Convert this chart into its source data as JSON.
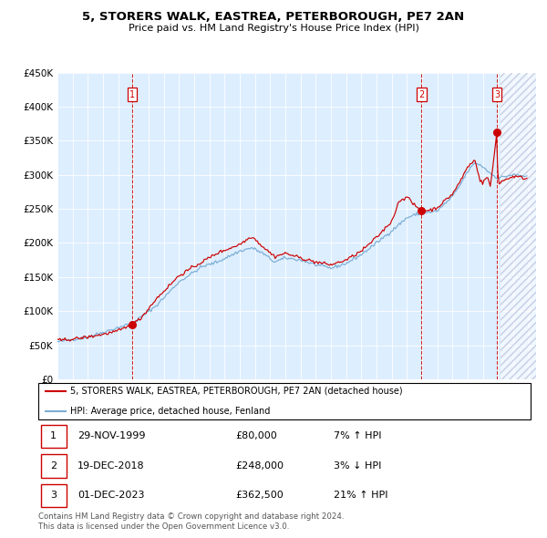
{
  "title": "5, STORERS WALK, EASTREA, PETERBOROUGH, PE7 2AN",
  "subtitle": "Price paid vs. HM Land Registry's House Price Index (HPI)",
  "ylim": [
    0,
    450000
  ],
  "xlim_start": 1995.0,
  "xlim_end": 2026.5,
  "sale_color": "#cc0000",
  "hpi_color": "#7aadd4",
  "background_color": "#ddeeff",
  "hatch_start": 2024.17,
  "annotations": [
    {
      "num": 1,
      "date": "29-NOV-1999",
      "price": 80000,
      "pct": "7%",
      "dir": "↑",
      "x": 1999.92
    },
    {
      "num": 2,
      "date": "19-DEC-2018",
      "price": 248000,
      "pct": "3%",
      "dir": "↓",
      "x": 2018.97
    },
    {
      "num": 3,
      "date": "01-DEC-2023",
      "price": 362500,
      "pct": "21%",
      "dir": "↑",
      "x": 2023.92
    }
  ],
  "legend_label_sale": "5, STORERS WALK, EASTREA, PETERBOROUGH, PE7 2AN (detached house)",
  "legend_label_hpi": "HPI: Average price, detached house, Fenland",
  "table_rows": [
    {
      "num": "1",
      "date": "29-NOV-1999",
      "price": "£80,000",
      "pct": "7% ↑ HPI"
    },
    {
      "num": "2",
      "date": "19-DEC-2018",
      "price": "£248,000",
      "pct": "3% ↓ HPI"
    },
    {
      "num": "3",
      "date": "01-DEC-2023",
      "price": "£362,500",
      "pct": "21% ↑ HPI"
    }
  ],
  "footer": "Contains HM Land Registry data © Crown copyright and database right 2024.\nThis data is licensed under the Open Government Licence v3.0.",
  "ytick_vals": [
    0,
    50000,
    100000,
    150000,
    200000,
    250000,
    300000,
    350000,
    400000,
    450000
  ],
  "ytick_labels": [
    "£0",
    "£50K",
    "£100K",
    "£150K",
    "£200K",
    "£250K",
    "£300K",
    "£350K",
    "£400K",
    "£450K"
  ]
}
